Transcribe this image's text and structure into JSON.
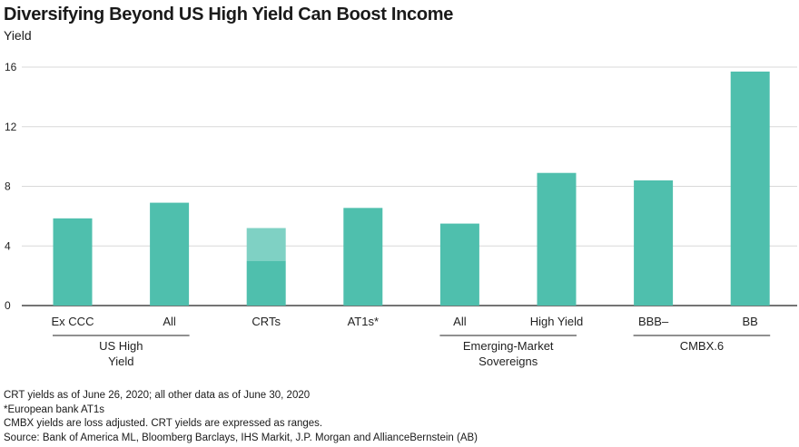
{
  "chart_data": {
    "type": "bar",
    "title": "Diversifying Beyond US High Yield Can Boost Income",
    "ylabel": "Yield",
    "ylim": [
      0,
      16
    ],
    "yticks": [
      0,
      4,
      8,
      12,
      16
    ],
    "grid": true,
    "categories": [
      "Ex CCC",
      "All",
      "CRTs",
      "AT1s*",
      "All",
      "High Yield",
      "BBB–",
      "BB"
    ],
    "values": [
      5.85,
      6.9,
      3.0,
      6.55,
      5.5,
      8.9,
      8.4,
      15.7
    ],
    "range_high": [
      null,
      null,
      5.2,
      null,
      null,
      null,
      null,
      null
    ],
    "groups": [
      {
        "label_lines": [
          "US High",
          "Yield"
        ],
        "members": [
          0,
          1
        ]
      },
      {
        "label_lines": [
          "Emerging-Market",
          "Sovereigns"
        ],
        "members": [
          4,
          5
        ]
      },
      {
        "label_lines": [
          "CMBX.6"
        ],
        "members": [
          6,
          7
        ]
      }
    ],
    "colors": {
      "bar": "#4fbfad",
      "range": "#7fd1c4",
      "grid": "#d9d9d9",
      "axis": "#222222"
    }
  },
  "notes": [
    "CRT yields as of June 26, 2020; all other data as of June 30, 2020",
    "*European bank AT1s",
    "CMBX yields are loss adjusted. CRT yields are expressed as ranges.",
    "Source: Bank of America ML, Bloomberg Barclays, IHS Markit, J.P. Morgan and AllianceBernstein (AB)"
  ]
}
